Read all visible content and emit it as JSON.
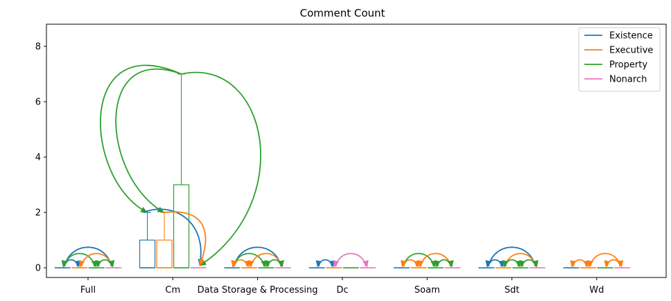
{
  "chart_data": {
    "type": "box",
    "title": "Comment Count",
    "xlabel": "",
    "ylabel": "",
    "categories": [
      "Full",
      "Cm",
      "Data Storage & Processing",
      "Dc",
      "Soam",
      "Sdt",
      "Wd"
    ],
    "ylim": [
      -0.35,
      8.8
    ],
    "yticks": [
      0,
      2,
      4,
      6,
      8
    ],
    "legend": {
      "placement": "top-right"
    },
    "series": [
      {
        "name": "Existence",
        "color": "#1f77b4"
      },
      {
        "name": "Executive",
        "color": "#ff7f0e"
      },
      {
        "name": "Property",
        "color": "#2ca02c"
      },
      {
        "name": "Nonarch",
        "color": "#e377c2"
      }
    ],
    "boxes": [
      {
        "category": 0,
        "series": 0,
        "q1": 0,
        "median": 0,
        "q3": 0,
        "whislo": 0,
        "whishi": 0
      },
      {
        "category": 0,
        "series": 1,
        "q1": 0,
        "median": 0,
        "q3": 0,
        "whislo": 0,
        "whishi": 0
      },
      {
        "category": 0,
        "series": 2,
        "q1": 0,
        "median": 0,
        "q3": 0,
        "whislo": 0,
        "whishi": 0
      },
      {
        "category": 0,
        "series": 3,
        "q1": 0,
        "median": 0,
        "q3": 0,
        "whislo": 0,
        "whishi": 0
      },
      {
        "category": 1,
        "series": 0,
        "q1": 0,
        "median": 0,
        "q3": 1,
        "whislo": 0,
        "whishi": 2
      },
      {
        "category": 1,
        "series": 1,
        "q1": 0,
        "median": 0,
        "q3": 1,
        "whislo": 0,
        "whishi": 2
      },
      {
        "category": 1,
        "series": 2,
        "q1": 0,
        "median": 0,
        "q3": 3,
        "whislo": 0,
        "whishi": 7
      },
      {
        "category": 1,
        "series": 3,
        "q1": 0,
        "median": 0,
        "q3": 0,
        "whislo": 0,
        "whishi": 0
      },
      {
        "category": 2,
        "series": 0,
        "q1": 0,
        "median": 0,
        "q3": 0,
        "whislo": 0,
        "whishi": 0
      },
      {
        "category": 2,
        "series": 1,
        "q1": 0,
        "median": 0,
        "q3": 0,
        "whislo": 0,
        "whishi": 0
      },
      {
        "category": 2,
        "series": 2,
        "q1": 0,
        "median": 0,
        "q3": 0,
        "whislo": 0,
        "whishi": 0
      },
      {
        "category": 2,
        "series": 3,
        "q1": 0,
        "median": 0,
        "q3": 0,
        "whislo": 0,
        "whishi": 0
      },
      {
        "category": 3,
        "series": 0,
        "q1": 0,
        "median": 0,
        "q3": 0,
        "whislo": 0,
        "whishi": 0
      },
      {
        "category": 3,
        "series": 1,
        "q1": 0,
        "median": 0,
        "q3": 0,
        "whislo": 0,
        "whishi": 0
      },
      {
        "category": 3,
        "series": 2,
        "q1": 0,
        "median": 0,
        "q3": 0,
        "whislo": 0,
        "whishi": 0
      },
      {
        "category": 3,
        "series": 3,
        "q1": 0,
        "median": 0,
        "q3": 0,
        "whislo": 0,
        "whishi": 0
      },
      {
        "category": 4,
        "series": 0,
        "q1": 0,
        "median": 0,
        "q3": 0,
        "whislo": 0,
        "whishi": 0
      },
      {
        "category": 4,
        "series": 1,
        "q1": 0,
        "median": 0,
        "q3": 0,
        "whislo": 0,
        "whishi": 0
      },
      {
        "category": 4,
        "series": 2,
        "q1": 0,
        "median": 0,
        "q3": 0,
        "whislo": 0,
        "whishi": 0
      },
      {
        "category": 4,
        "series": 3,
        "q1": 0,
        "median": 0,
        "q3": 0,
        "whislo": 0,
        "whishi": 0
      },
      {
        "category": 5,
        "series": 0,
        "q1": 0,
        "median": 0,
        "q3": 0,
        "whislo": 0,
        "whishi": 0
      },
      {
        "category": 5,
        "series": 1,
        "q1": 0,
        "median": 0,
        "q3": 0,
        "whislo": 0,
        "whishi": 0
      },
      {
        "category": 5,
        "series": 2,
        "q1": 0,
        "median": 0,
        "q3": 0,
        "whislo": 0,
        "whishi": 0
      },
      {
        "category": 5,
        "series": 3,
        "q1": 0,
        "median": 0,
        "q3": 0,
        "whislo": 0,
        "whishi": 0
      },
      {
        "category": 6,
        "series": 0,
        "q1": 0,
        "median": 0,
        "q3": 0,
        "whislo": 0,
        "whishi": 0
      },
      {
        "category": 6,
        "series": 1,
        "q1": 0,
        "median": 0,
        "q3": 0,
        "whislo": 0,
        "whishi": 0
      },
      {
        "category": 6,
        "series": 2,
        "q1": 0,
        "median": 0,
        "q3": 0,
        "whislo": 0,
        "whishi": 0
      },
      {
        "category": 6,
        "series": 3,
        "q1": 0,
        "median": 0,
        "q3": 0,
        "whislo": 0,
        "whishi": 0
      }
    ],
    "significance_arcs": [
      {
        "category": 0,
        "from": 0,
        "to": 3,
        "color": "#1f77b4"
      },
      {
        "category": 0,
        "from": 0,
        "to": 1,
        "color": "#1f77b4"
      },
      {
        "category": 0,
        "from": 0,
        "to": 2,
        "color": "#2ca02c"
      },
      {
        "category": 0,
        "from": 1,
        "to": 3,
        "color": "#ff7f0e"
      },
      {
        "category": 0,
        "from": 2,
        "to": 3,
        "color": "#2ca02c"
      },
      {
        "category": 2,
        "from": 0,
        "to": 3,
        "color": "#1f77b4"
      },
      {
        "category": 2,
        "from": 0,
        "to": 2,
        "color": "#2ca02c"
      },
      {
        "category": 2,
        "from": 1,
        "to": 3,
        "color": "#ff7f0e"
      },
      {
        "category": 2,
        "from": 0,
        "to": 1,
        "color": "#ff7f0e"
      },
      {
        "category": 2,
        "from": 2,
        "to": 3,
        "color": "#2ca02c"
      },
      {
        "category": 3,
        "from": 0,
        "to": 1,
        "color": "#1f77b4"
      },
      {
        "category": 3,
        "from": 1,
        "to": 3,
        "color": "#e377c2"
      },
      {
        "category": 4,
        "from": 0,
        "to": 2,
        "color": "#2ca02c"
      },
      {
        "category": 4,
        "from": 0,
        "to": 1,
        "color": "#ff7f0e"
      },
      {
        "category": 4,
        "from": 1,
        "to": 3,
        "color": "#ff7f0e"
      },
      {
        "category": 4,
        "from": 2,
        "to": 3,
        "color": "#2ca02c"
      },
      {
        "category": 5,
        "from": 0,
        "to": 3,
        "color": "#1f77b4"
      },
      {
        "category": 5,
        "from": 0,
        "to": 1,
        "color": "#1f77b4"
      },
      {
        "category": 5,
        "from": 1,
        "to": 3,
        "color": "#ff7f0e"
      },
      {
        "category": 5,
        "from": 1,
        "to": 2,
        "color": "#2ca02c"
      },
      {
        "category": 5,
        "from": 2,
        "to": 3,
        "color": "#2ca02c"
      },
      {
        "category": 6,
        "from": 0,
        "to": 1,
        "color": "#ff7f0e"
      },
      {
        "category": 6,
        "from": 1,
        "to": 3,
        "color": "#ff7f0e"
      },
      {
        "category": 6,
        "from": 2,
        "to": 3,
        "color": "#ff7f0e"
      }
    ]
  }
}
